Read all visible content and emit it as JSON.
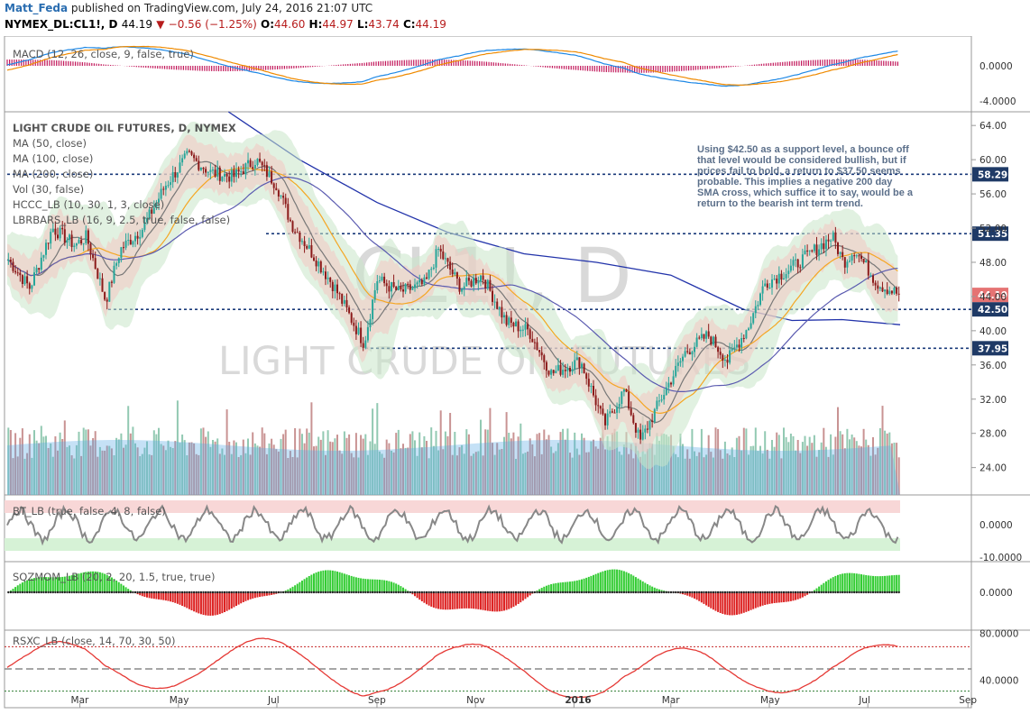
{
  "header": {
    "author": "Matt_Feda",
    "published": "published on TradingView.com, July 24, 2016 21:07 UTC",
    "symbol": "NYMEX_DL:CL1!, D",
    "last": "44.19",
    "arrow": "▼",
    "change": "−0.56 (−1.25%)",
    "o_label": "O:",
    "o": "44.60",
    "h_label": "H:",
    "h": "44.97",
    "l_label": "L:",
    "l": "43.74",
    "c_label": "C:",
    "c": "44.19"
  },
  "indicators": {
    "macd": "MACD (12, 26, close, 9, false, true)",
    "main_title": "LIGHT CRUDE OIL FUTURES, D, NYMEX",
    "ma50": "MA (50, close)",
    "ma100": "MA (100, close)",
    "ma200": "MA (200, close)",
    "vol": "Vol (30, false)",
    "hccc": "HCCC_LB (10, 30, 1, 3, close)",
    "lbrbars": "LBRBARS_LB (16, 9, 2.5, true, false, false)",
    "bt": "BT_LB (true, false, 4, 8, false)",
    "sqz": "SQZMOM_LB (20, 2, 20, 1.5, true, true)",
    "rsxc": "RSXC_LB (close, 14, 70, 30, 50)"
  },
  "watermark": {
    "line1": "CL1!, D",
    "line2": "LIGHT CRUDE OIL FUTURES"
  },
  "annotation": "Using $42.50 as a support level, a bounce off that level would be considered bullish, but if prices fail to hold, a return to $37.50 seems probable. This implies a negative 200 day SMA cross, which suffice it to say, would be a return to the bearish int term trend.",
  "colors": {
    "up": "#26a69a",
    "down": "#8b1a1a",
    "ma50": "#555555",
    "ma100": "#f5a623",
    "ma200": "#2233aa",
    "level_line": "#1a3a7a",
    "badge": "#1f3a66",
    "last_badge": "#e57373"
  },
  "chart_data": {
    "type": "line",
    "title": "LIGHT CRUDE OIL FUTURES, D, NYMEX",
    "x_ticks": [
      "Mar",
      "May",
      "Jul",
      "Sep",
      "Nov",
      "2016",
      "Mar",
      "May",
      "Jul",
      "Sep"
    ],
    "price_axis": [
      "64.00",
      "60.00",
      "56.00",
      "52.00",
      "48.00",
      "44.00",
      "40.00",
      "36.00",
      "32.00",
      "28.00",
      "24.00"
    ],
    "ylim": [
      20.8,
      65.6
    ],
    "levels": [
      {
        "label": "58.29",
        "value": 58.29
      },
      {
        "label": "51.35",
        "value": 51.35
      },
      {
        "label": "42.50",
        "value": 42.5
      },
      {
        "label": "37.95",
        "value": 37.95
      }
    ],
    "last_price": {
      "label": "44.19",
      "value": 44.19
    },
    "close_series": {
      "name": "",
      "points": [
        [
          "2015-01-15",
          48.5
        ],
        [
          "2015-01-29",
          45.0
        ],
        [
          "2015-02-12",
          52.0
        ],
        [
          "2015-02-26",
          50.0
        ],
        [
          "2015-03-05",
          51.0
        ],
        [
          "2015-03-17",
          43.5
        ],
        [
          "2015-03-26",
          49.5
        ],
        [
          "2015-04-09",
          52.0
        ],
        [
          "2015-04-23",
          57.0
        ],
        [
          "2015-05-07",
          60.5
        ],
        [
          "2015-05-21",
          58.5
        ],
        [
          "2015-06-04",
          58.0
        ],
        [
          "2015-06-18",
          60.0
        ],
        [
          "2015-07-01",
          57.0
        ],
        [
          "2015-07-10",
          52.5
        ],
        [
          "2015-07-23",
          49.0
        ],
        [
          "2015-08-06",
          45.0
        ],
        [
          "2015-08-24",
          38.5
        ],
        [
          "2015-09-01",
          46.0
        ],
        [
          "2015-09-15",
          44.5
        ],
        [
          "2015-10-01",
          45.5
        ],
        [
          "2015-10-09",
          49.5
        ],
        [
          "2015-10-23",
          45.0
        ],
        [
          "2015-11-05",
          46.5
        ],
        [
          "2015-11-20",
          41.0
        ],
        [
          "2015-12-04",
          40.0
        ],
        [
          "2015-12-18",
          35.0
        ],
        [
          "2016-01-05",
          36.5
        ],
        [
          "2016-01-20",
          29.0
        ],
        [
          "2016-02-01",
          33.0
        ],
        [
          "2016-02-11",
          27.0
        ],
        [
          "2016-02-25",
          32.5
        ],
        [
          "2016-03-10",
          37.5
        ],
        [
          "2016-03-24",
          39.5
        ],
        [
          "2016-04-05",
          36.5
        ],
        [
          "2016-04-18",
          40.5
        ],
        [
          "2016-04-28",
          45.5
        ],
        [
          "2016-05-12",
          47.0
        ],
        [
          "2016-05-26",
          49.0
        ],
        [
          "2016-06-09",
          51.0
        ],
        [
          "2016-06-16",
          48.0
        ],
        [
          "2016-06-23",
          49.5
        ],
        [
          "2016-07-07",
          45.5
        ],
        [
          "2016-07-21",
          44.19
        ]
      ]
    },
    "ma200_series": {
      "name": "MA (200, close)",
      "points": [
        [
          "2015-06-01",
          66.0
        ],
        [
          "2015-07-15",
          60.0
        ],
        [
          "2015-09-01",
          55.0
        ],
        [
          "2015-10-15",
          51.5
        ],
        [
          "2015-12-01",
          49.0
        ],
        [
          "2016-01-15",
          48.0
        ],
        [
          "2016-03-01",
          46.5
        ],
        [
          "2016-04-15",
          42.5
        ],
        [
          "2016-05-15",
          41.2
        ],
        [
          "2016-06-15",
          41.3
        ],
        [
          "2016-07-21",
          40.7
        ]
      ]
    },
    "macd": {
      "axis": [
        "0.0000",
        "-4.0000"
      ]
    },
    "bt": {
      "axis": [
        "0.0000",
        "-10.0000"
      ]
    },
    "sqz": {
      "axis": [
        "0.0000"
      ]
    },
    "rsxc": {
      "axis": [
        "80.0000",
        "40.0000"
      ],
      "levels": [
        70,
        50,
        30
      ]
    }
  }
}
